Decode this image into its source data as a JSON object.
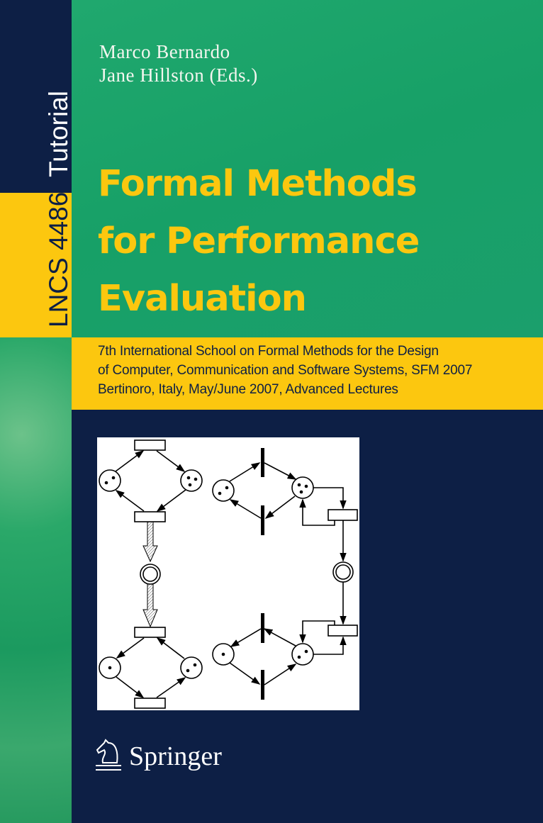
{
  "spine": {
    "series_type": "Tutorial",
    "series_number": "LNCS 4486"
  },
  "authors": [
    "Marco Bernardo",
    "Jane Hillston (Eds.)"
  ],
  "title_lines": [
    "Formal Methods",
    "for Performance",
    "Evaluation"
  ],
  "subtitle_lines": [
    "7th International School on Formal Methods for the Design",
    "of Computer, Communication and Software Systems, SFM 2007",
    "Bertinoro, Italy, May/June 2007, Advanced Lectures"
  ],
  "publisher": {
    "name": "Springer",
    "logo_icon": "knight-chess-piece-icon"
  },
  "colors": {
    "green": "#1aa36a",
    "yellow": "#fcc70f",
    "navy": "#0d1f45"
  }
}
